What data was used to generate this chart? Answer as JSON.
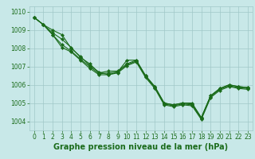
{
  "title": "Graphe pression niveau de la mer (hPa)",
  "background_color": "#c8e8e8",
  "grid_color": "#a0c8c8",
  "line_color": "#1a6b1a",
  "marker_color": "#1a6b1a",
  "xlim": [
    -0.5,
    23.5
  ],
  "ylim": [
    1003.5,
    1010.3
  ],
  "yticks": [
    1004,
    1005,
    1006,
    1007,
    1008,
    1009,
    1010
  ],
  "xticks": [
    0,
    1,
    2,
    3,
    4,
    5,
    6,
    7,
    8,
    9,
    10,
    11,
    12,
    13,
    14,
    15,
    16,
    17,
    18,
    19,
    20,
    21,
    22,
    23
  ],
  "series": [
    [
      1009.7,
      1009.3,
      1009.0,
      1008.75,
      1008.0,
      1007.55,
      1007.05,
      1006.7,
      1006.55,
      1006.7,
      1007.35,
      1007.35,
      1006.5,
      1005.9,
      1005.0,
      1004.9,
      1005.0,
      1005.0,
      1004.2,
      1005.4,
      1005.8,
      1006.0,
      1005.9,
      1005.85
    ],
    [
      1009.7,
      1009.3,
      1008.85,
      1008.5,
      1008.05,
      1007.5,
      1007.15,
      1006.65,
      1006.75,
      1006.75,
      1007.15,
      1007.35,
      1006.5,
      1005.9,
      1005.0,
      1004.9,
      1005.0,
      1004.95,
      1004.2,
      1005.4,
      1005.8,
      1006.0,
      1005.9,
      1005.85
    ],
    [
      1009.7,
      1009.3,
      1008.75,
      1008.2,
      1007.85,
      1007.4,
      1007.0,
      1006.6,
      1006.65,
      1006.7,
      1007.1,
      1007.3,
      1006.45,
      1005.85,
      1004.95,
      1004.85,
      1004.95,
      1004.9,
      1004.15,
      1005.35,
      1005.75,
      1005.95,
      1005.85,
      1005.8
    ],
    [
      1009.7,
      1009.3,
      1008.75,
      1008.05,
      1007.8,
      1007.35,
      1006.9,
      1006.55,
      1006.55,
      1006.65,
      1007.05,
      1007.25,
      1006.4,
      1005.8,
      1004.9,
      1004.8,
      1004.9,
      1004.85,
      1004.1,
      1005.3,
      1005.7,
      1005.9,
      1005.8,
      1005.75
    ]
  ],
  "marker": "D",
  "marker_size": 2.2,
  "linewidth": 0.8,
  "title_fontsize": 7,
  "tick_fontsize": 5.5,
  "title_color": "#1a6b1a",
  "tick_color": "#1a6b1a"
}
